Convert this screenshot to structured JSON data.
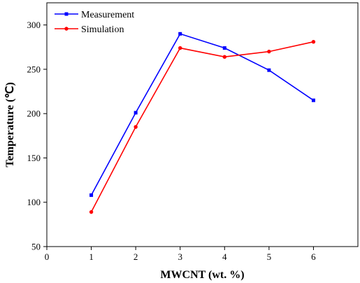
{
  "chart_data": {
    "type": "line",
    "xlabel": "MWCNT (wt. %)",
    "ylabel": "Temperature (℃)",
    "xlim": [
      0,
      7
    ],
    "ylim": [
      50,
      325
    ],
    "x_ticks": [
      0,
      1,
      2,
      3,
      4,
      5,
      6
    ],
    "y_ticks": [
      50,
      100,
      150,
      200,
      250,
      300
    ],
    "grid": false,
    "legend_position": "top-left",
    "series": [
      {
        "name": "Measurement",
        "color": "#0000ff",
        "marker": "square",
        "x": [
          1,
          2,
          3,
          4,
          5,
          6
        ],
        "y": [
          108,
          201,
          290,
          274,
          249,
          215
        ]
      },
      {
        "name": "Simulation",
        "color": "#ff0000",
        "marker": "circle",
        "x": [
          1,
          2,
          3,
          4,
          5,
          6
        ],
        "y": [
          89,
          185,
          274,
          264,
          270,
          281
        ]
      }
    ]
  }
}
